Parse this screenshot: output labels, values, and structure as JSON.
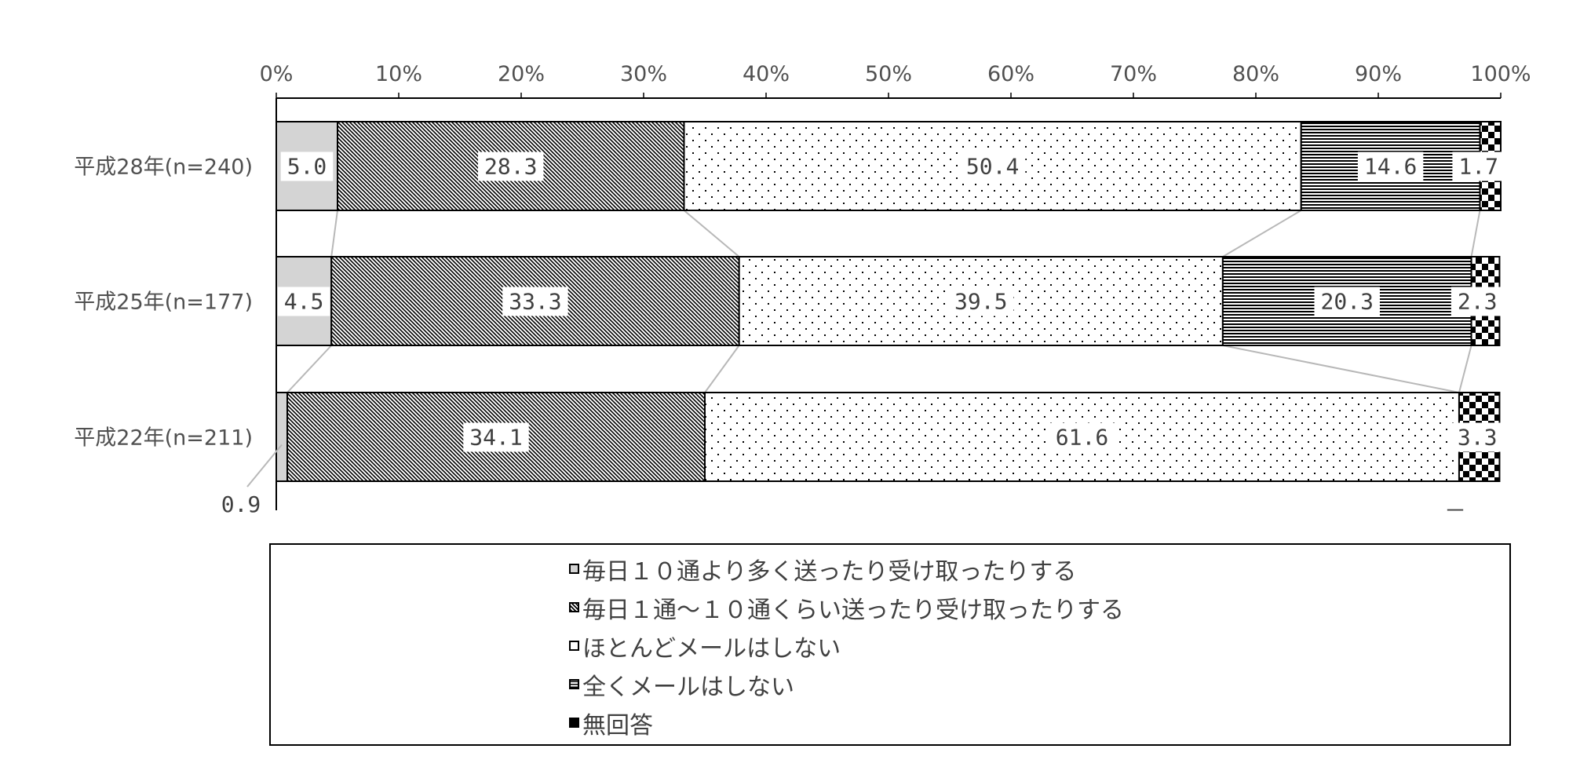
{
  "chart_data": {
    "type": "bar",
    "orientation": "horizontal",
    "stacked": "100%",
    "x_ticks": [
      "0%",
      "10%",
      "20%",
      "30%",
      "40%",
      "50%",
      "60%",
      "70%",
      "80%",
      "90%",
      "100%"
    ],
    "xlim": [
      0,
      100
    ],
    "categories": [
      "平成28年(n=240)",
      "平成25年(n=177)",
      "平成22年(n=211)"
    ],
    "series": [
      {
        "name": "毎日１０通より多く送ったり受け取ったりする",
        "values": [
          5.0,
          4.5,
          0.9
        ],
        "labels": [
          "5.0",
          "4.5",
          "0.9"
        ],
        "pattern": "gray",
        "color": "#d4d4d4"
      },
      {
        "name": "毎日１通～１０通くらい送ったり受け取ったりする",
        "values": [
          28.3,
          33.3,
          34.1
        ],
        "labels": [
          "28.3",
          "33.3",
          "34.1"
        ],
        "pattern": "diagonal",
        "color": "#000000"
      },
      {
        "name": "ほとんどメールはしない",
        "values": [
          50.4,
          39.5,
          61.6
        ],
        "labels": [
          "50.4",
          "39.5",
          "61.6"
        ],
        "pattern": "dots",
        "color": "#000000"
      },
      {
        "name": "全くメールはしない",
        "values": [
          14.6,
          20.3,
          0
        ],
        "labels": [
          "14.6",
          "20.3",
          "－"
        ],
        "pattern": "horizontal",
        "color": "#000000"
      },
      {
        "name": "無回答",
        "values": [
          1.7,
          2.3,
          3.3
        ],
        "labels": [
          "1.7",
          "2.3",
          "3.3"
        ],
        "pattern": "checker",
        "color": "#000000"
      }
    ],
    "grid": false,
    "legend_position": "bottom"
  }
}
